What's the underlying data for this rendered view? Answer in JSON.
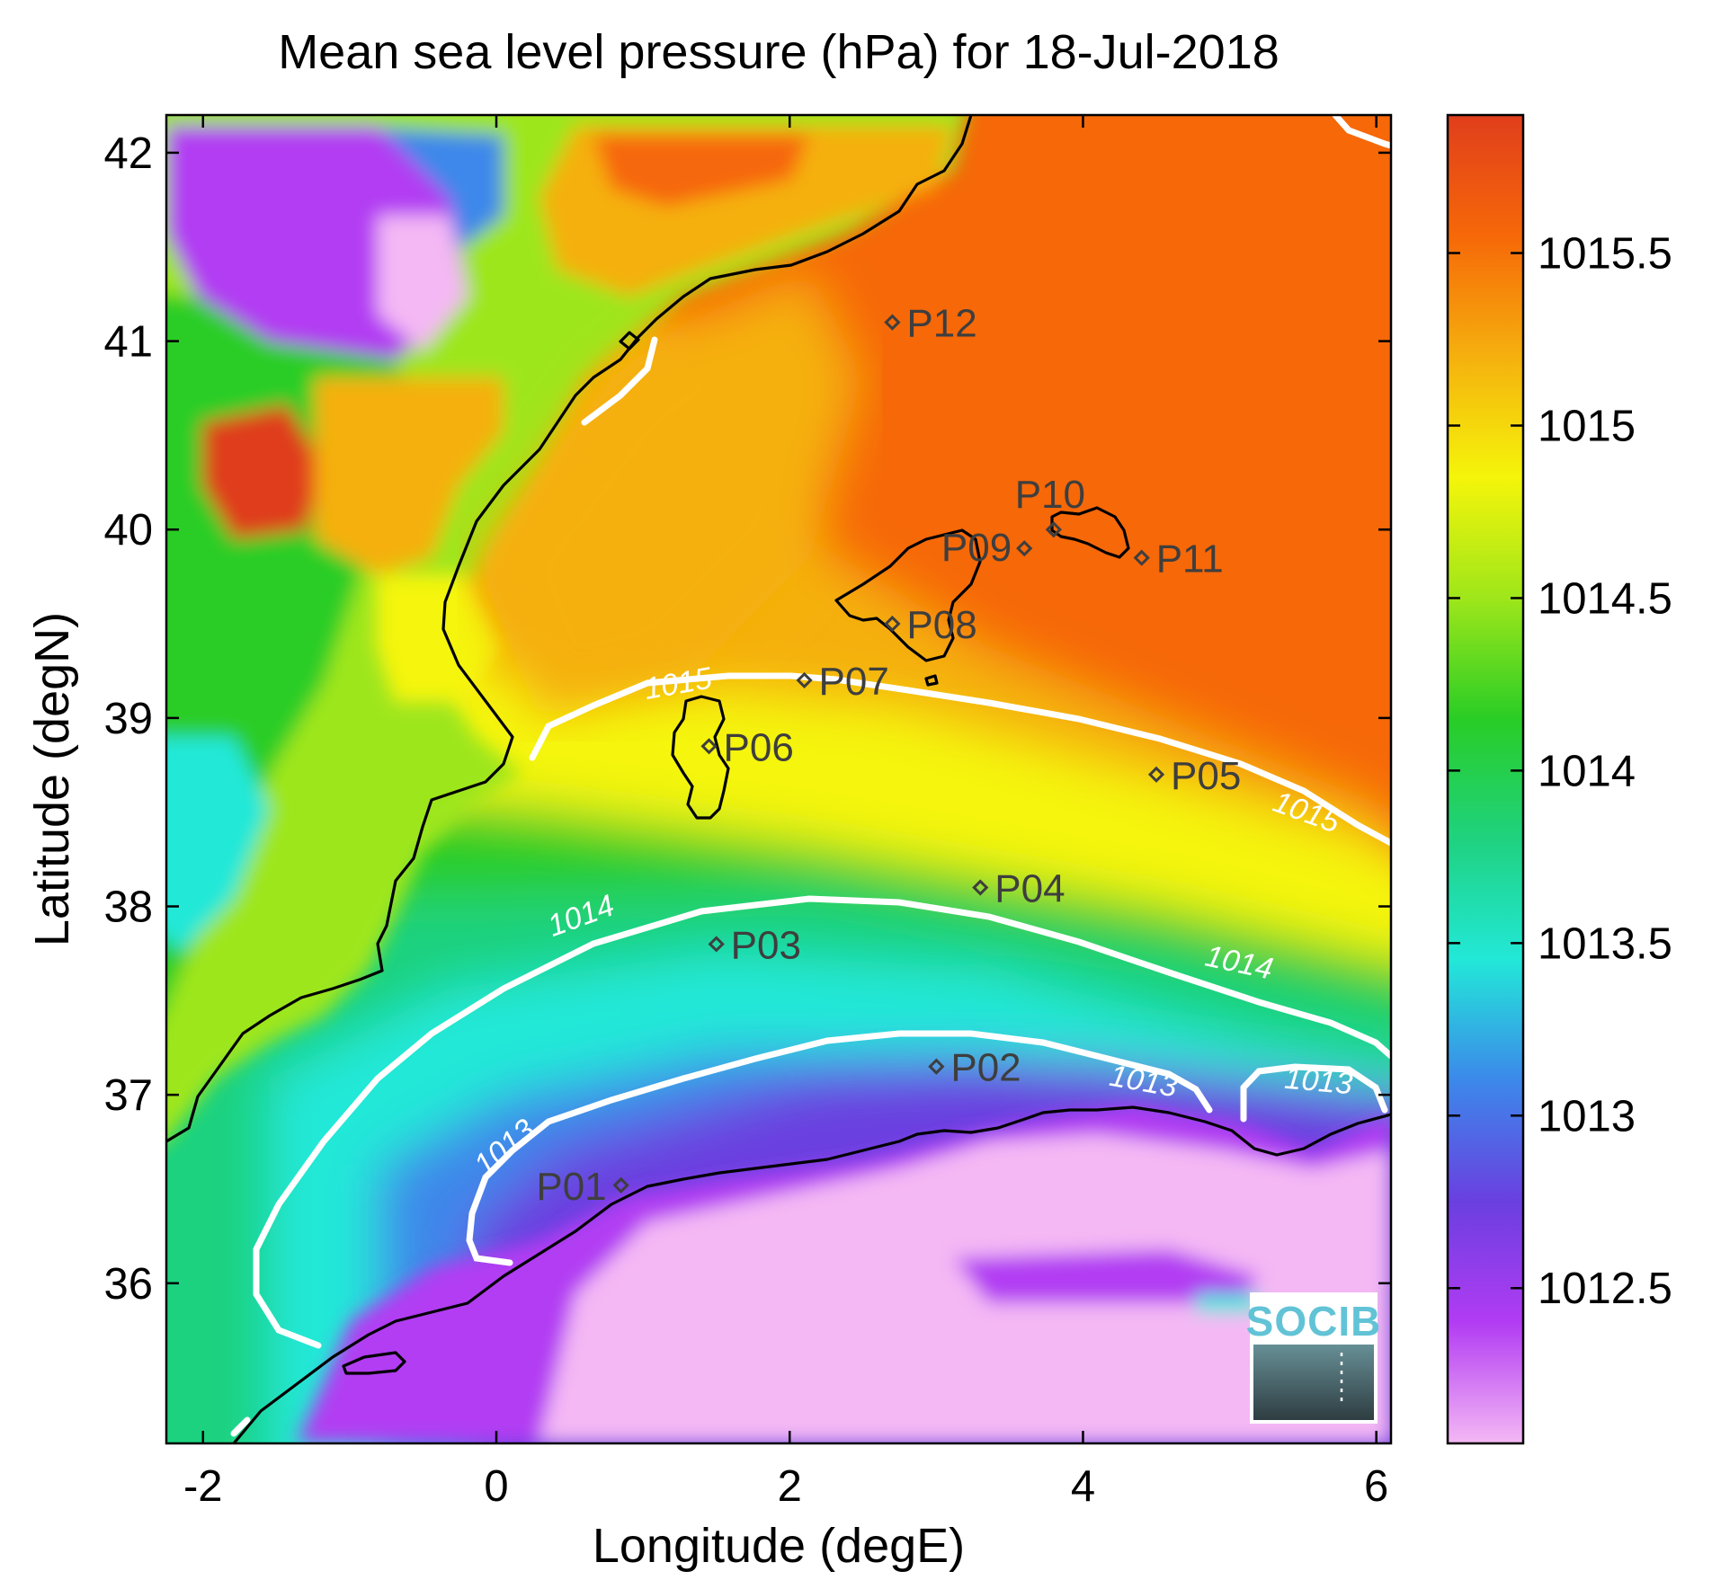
{
  "title": "Mean sea level pressure (hPa) for 18-Jul-2018",
  "xlabel": "Longitude (degE)",
  "ylabel": "Latitude (degN)",
  "x_ticks": [
    -2,
    0,
    2,
    4,
    6
  ],
  "y_ticks": [
    36,
    37,
    38,
    39,
    40,
    41,
    42
  ],
  "x_range": [
    -2.25,
    6.1
  ],
  "y_range": [
    35.15,
    42.2
  ],
  "colorbar": {
    "ticks": [
      "1012.5",
      "1013",
      "1013.5",
      "1014",
      "1014.5",
      "1015",
      "1015.5"
    ],
    "values": [
      1012.5,
      1013,
      1013.5,
      1014,
      1014.5,
      1015,
      1015.5
    ],
    "range": [
      1012.05,
      1015.9
    ]
  },
  "colormap": [
    "#f4b8f4",
    "#b23cf3",
    "#6a3fe0",
    "#3c88ea",
    "#22e8d8",
    "#1fd27f",
    "#29cd26",
    "#9ee61a",
    "#f5f50a",
    "#f5b00e",
    "#f66808",
    "#e03e1c"
  ],
  "stations": [
    {
      "name": "P01",
      "lon": 0.85,
      "lat": 36.52
    },
    {
      "name": "P02",
      "lon": 3.0,
      "lat": 37.15
    },
    {
      "name": "P03",
      "lon": 1.5,
      "lat": 37.8
    },
    {
      "name": "P04",
      "lon": 3.3,
      "lat": 38.1
    },
    {
      "name": "P05",
      "lon": 4.5,
      "lat": 38.7
    },
    {
      "name": "P06",
      "lon": 1.45,
      "lat": 38.85
    },
    {
      "name": "P07",
      "lon": 2.1,
      "lat": 39.2
    },
    {
      "name": "P08",
      "lon": 2.7,
      "lat": 39.5
    },
    {
      "name": "P09",
      "lon": 3.6,
      "lat": 39.9
    },
    {
      "name": "P10",
      "lon": 3.8,
      "lat": 40.0
    },
    {
      "name": "P11",
      "lon": 4.4,
      "lat": 39.85
    },
    {
      "name": "P12",
      "lon": 2.7,
      "lat": 41.1
    }
  ],
  "contour_labels": [
    {
      "text": "1015",
      "lon": 1.25,
      "lat": 39.13
    },
    {
      "text": "1015",
      "lon": 5.5,
      "lat": 38.45
    },
    {
      "text": "1014",
      "lon": 0.6,
      "lat": 37.9
    },
    {
      "text": "1014",
      "lon": 5.05,
      "lat": 37.65
    },
    {
      "text": "1013",
      "lon": 0.1,
      "lat": 36.68
    },
    {
      "text": "1013",
      "lon": 4.4,
      "lat": 37.02
    },
    {
      "text": "1013",
      "lon": 5.6,
      "lat": 37.02
    }
  ],
  "logo": {
    "text": "SOCIB"
  }
}
